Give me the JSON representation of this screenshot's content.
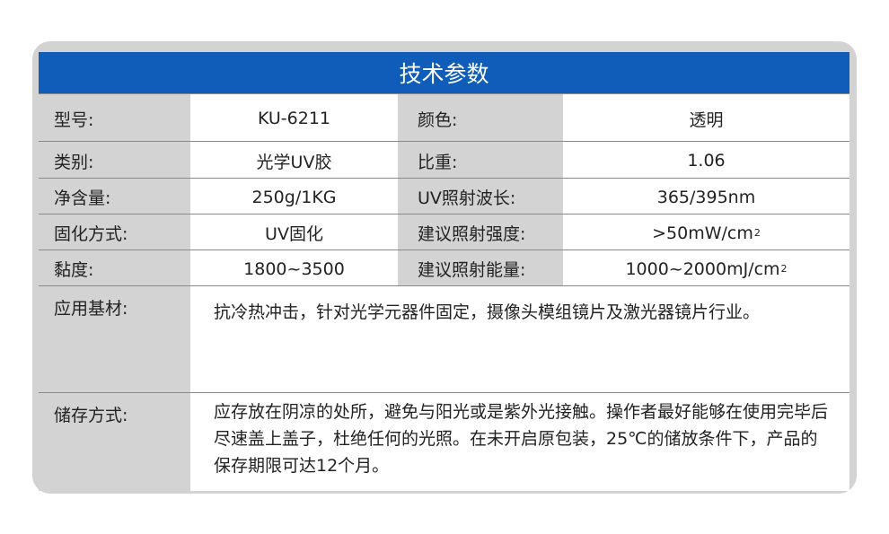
{
  "title": "技术参数",
  "colors": {
    "header": "#0f5db8",
    "label_bg": "#d3d3d3",
    "frame": "#d3d3d3"
  },
  "rows": [
    {
      "label1": "型号:",
      "value1": "KU-6211",
      "label2": "颜色:",
      "value2": "透明"
    },
    {
      "label1": "类别:",
      "value1": "光学UV胶",
      "label2": "比重:",
      "value2": "1.06"
    },
    {
      "label1": "净含量:",
      "value1": "250g/1KG",
      "label2": "UV照射波长:",
      "value2": "365/395nm"
    },
    {
      "label1": "固化方式:",
      "value1": "UV固化",
      "label2": "建议照射强度:",
      "value2": ">50mW/cm",
      "value2_sup": "2"
    },
    {
      "label1": "黏度:",
      "value1": "1800~3500",
      "label2": "建议照射能量:",
      "value2": "1000~2000mJ/cm",
      "value2_sup": "2"
    }
  ],
  "application": {
    "label": "应用基材:",
    "text": "抗冷热冲击，针对光学元器件固定，摄像头模组镜片及激光器镜片行业。"
  },
  "storage": {
    "label": "储存方式:",
    "text": "应存放在阴凉的处所，避免与阳光或是紫外光接触。操作者最好能够在使用完毕后尽速盖上盖子，杜绝任何的光照。在未开启原包装，25℃的储放条件下，产品的保存期限可达12个月。"
  }
}
